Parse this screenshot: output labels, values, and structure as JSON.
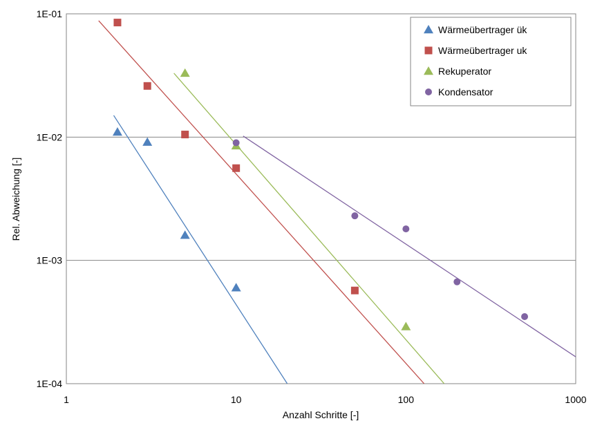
{
  "chart_data": {
    "type": "scatter",
    "xlabel": "Anzahl Schritte [-]",
    "ylabel": "Rel. Abweichung [-]",
    "x_scale": "log",
    "y_scale": "log",
    "xlim": [
      1,
      1000
    ],
    "ylim": [
      0.0001,
      0.1
    ],
    "x_ticks": [
      1,
      10,
      100,
      1000
    ],
    "x_tick_labels": [
      "1",
      "10",
      "100",
      "1000"
    ],
    "y_ticks": [
      0.0001,
      0.001,
      0.01,
      0.1
    ],
    "y_tick_labels": [
      "1E-04",
      "1E-03",
      "1E-02",
      "1E-01"
    ],
    "grid": "horizontal",
    "legend_position": "top-right",
    "series": [
      {
        "name": "Wärmeübertrager ük",
        "marker": "triangle",
        "color": "#4F81BD",
        "points": [
          [
            2,
            0.011
          ],
          [
            3,
            0.0091
          ],
          [
            5,
            0.0016
          ],
          [
            10,
            0.0006
          ]
        ],
        "trendline": [
          [
            1.9,
            0.015
          ],
          [
            20,
            0.0001
          ]
        ]
      },
      {
        "name": "Wärmeübertrager uk",
        "marker": "square",
        "color": "#C0504D",
        "points": [
          [
            2,
            0.085
          ],
          [
            3,
            0.026
          ],
          [
            5,
            0.0105
          ],
          [
            10,
            0.0056
          ],
          [
            50,
            0.00057
          ]
        ],
        "trendline": [
          [
            1.55,
            0.088
          ],
          [
            128,
            0.0001
          ]
        ]
      },
      {
        "name": "Rekuperator",
        "marker": "triangle",
        "color": "#9BBB59",
        "points": [
          [
            5,
            0.033
          ],
          [
            10,
            0.0085
          ],
          [
            100,
            0.00029
          ]
        ],
        "trendline": [
          [
            4.3,
            0.033
          ],
          [
            168,
            0.0001
          ]
        ]
      },
      {
        "name": "Kondensator",
        "marker": "circle",
        "color": "#8064A2",
        "points": [
          [
            10,
            0.009
          ],
          [
            50,
            0.0023
          ],
          [
            100,
            0.0018
          ],
          [
            200,
            0.00067
          ],
          [
            500,
            0.00035
          ]
        ],
        "trendline": [
          [
            11,
            0.0102
          ],
          [
            1000,
            0.000165
          ]
        ]
      }
    ]
  }
}
